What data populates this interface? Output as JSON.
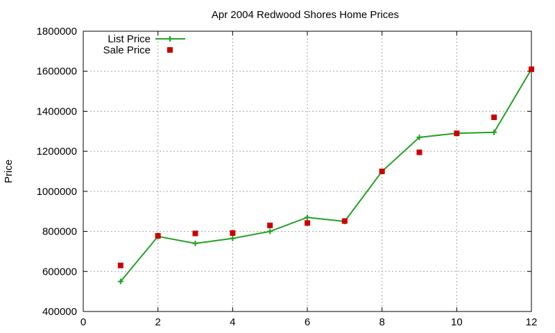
{
  "chart_data": {
    "type": "line",
    "title": "Apr 2004 Redwood Shores Home Prices",
    "xlabel": "",
    "ylabel": "Price",
    "xlim": [
      0,
      12
    ],
    "ylim": [
      400000,
      1800000
    ],
    "xticks": [
      0,
      2,
      4,
      6,
      8,
      10,
      12
    ],
    "yticks": [
      400000,
      600000,
      800000,
      1000000,
      1200000,
      1400000,
      1600000,
      1800000
    ],
    "grid": true,
    "legend_position": "top-left",
    "series": [
      {
        "name": "List Price",
        "style": "line-with-plus-markers",
        "color": "#22a022",
        "x": [
          1,
          2,
          3,
          4,
          5,
          6,
          7,
          8,
          9,
          10,
          11,
          12
        ],
        "y": [
          550000,
          775000,
          740000,
          765000,
          800000,
          870000,
          850000,
          1100000,
          1270000,
          1290000,
          1295000,
          1610000
        ]
      },
      {
        "name": "Sale Price",
        "style": "square-markers",
        "color": "#cc0000",
        "x": [
          1,
          2,
          3,
          4,
          5,
          6,
          7,
          8,
          9,
          10,
          11,
          12
        ],
        "y": [
          630000,
          778000,
          790000,
          792000,
          830000,
          842000,
          852000,
          1100000,
          1195000,
          1290000,
          1370000,
          1610000
        ]
      }
    ]
  }
}
